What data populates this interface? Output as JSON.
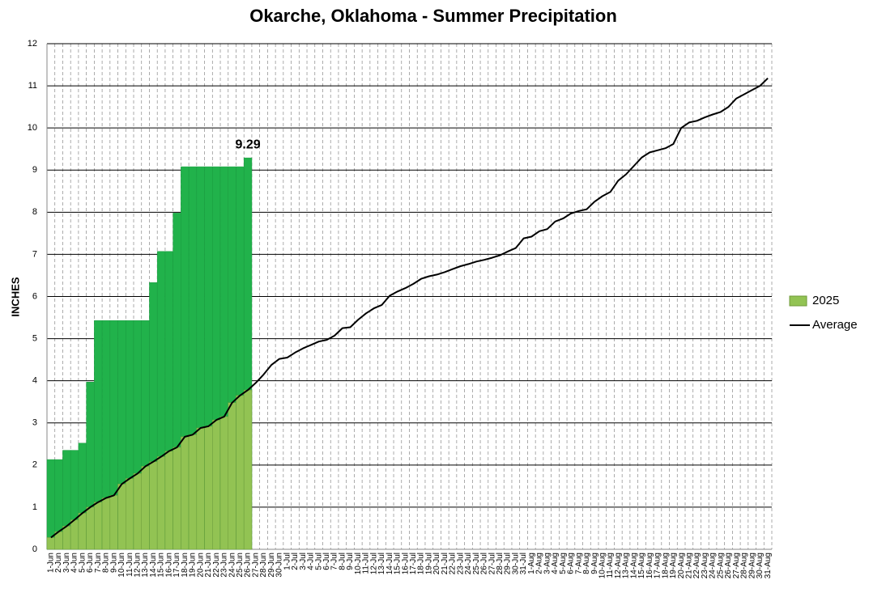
{
  "chart_data": {
    "type": "bar-line",
    "title": "Okarche, Oklahoma - Summer Precipitation",
    "y_label": "INCHES",
    "categories": [
      "1-Jun",
      "2-Jun",
      "3-Jun",
      "4-Jun",
      "5-Jun",
      "6-Jun",
      "7-Jun",
      "8-Jun",
      "9-Jun",
      "10-Jun",
      "11-Jun",
      "12-Jun",
      "13-Jun",
      "14-Jun",
      "15-Jun",
      "16-Jun",
      "17-Jun",
      "18-Jun",
      "19-Jun",
      "20-Jun",
      "21-Jun",
      "22-Jun",
      "23-Jun",
      "24-Jun",
      "25-Jun",
      "26-Jun",
      "27-Jun",
      "28-Jun",
      "29-Jun",
      "30-Jun",
      "1-Jul",
      "2-Jul",
      "3-Jul",
      "4-Jul",
      "5-Jul",
      "6-Jul",
      "7-Jul",
      "8-Jul",
      "9-Jul",
      "10-Jul",
      "11-Jul",
      "12-Jul",
      "13-Jul",
      "14-Jul",
      "15-Jul",
      "16-Jul",
      "17-Jul",
      "18-Jul",
      "19-Jul",
      "20-Jul",
      "21-Jul",
      "22-Jul",
      "23-Jul",
      "24-Jul",
      "25-Jul",
      "26-Jul",
      "27-Jul",
      "28-Jul",
      "29-Jul",
      "30-Jul",
      "31-Jul",
      "1-Aug",
      "2-Aug",
      "3-Aug",
      "4-Aug",
      "5-Aug",
      "6-Aug",
      "7-Aug",
      "8-Aug",
      "9-Aug",
      "10-Aug",
      "11-Aug",
      "12-Aug",
      "13-Aug",
      "14-Aug",
      "15-Aug",
      "16-Aug",
      "17-Aug",
      "18-Aug",
      "19-Aug",
      "20-Aug",
      "21-Aug",
      "22-Aug",
      "23-Aug",
      "24-Aug",
      "25-Aug",
      "26-Aug",
      "27-Aug",
      "28-Aug",
      "29-Aug",
      "30-Aug",
      "31-Aug"
    ],
    "series": [
      {
        "name": "2025",
        "kind": "bar",
        "color": "#92c353",
        "color_above_average": "#21b24b",
        "values": [
          2.13,
          2.13,
          2.35,
          2.35,
          2.52,
          3.97,
          5.43,
          5.43,
          5.43,
          5.43,
          5.43,
          5.43,
          5.43,
          6.33,
          7.07,
          7.07,
          7.98,
          9.08,
          9.08,
          9.08,
          9.08,
          9.08,
          9.08,
          9.08,
          9.08,
          9.29,
          null,
          null,
          null,
          null,
          null,
          null,
          null,
          null,
          null,
          null,
          null,
          null,
          null,
          null,
          null,
          null,
          null,
          null,
          null,
          null,
          null,
          null,
          null,
          null,
          null,
          null,
          null,
          null,
          null,
          null,
          null,
          null,
          null,
          null,
          null,
          null,
          null,
          null,
          null,
          null,
          null,
          null,
          null,
          null,
          null,
          null,
          null,
          null,
          null,
          null,
          null,
          null,
          null,
          null,
          null,
          null,
          null,
          null,
          null,
          null,
          null,
          null,
          null,
          null,
          null,
          null
        ],
        "value_labels": [
          null,
          null,
          null,
          null,
          null,
          null,
          null,
          null,
          null,
          null,
          null,
          null,
          null,
          null,
          null,
          null,
          null,
          null,
          null,
          null,
          null,
          null,
          null,
          null,
          null,
          "9.29",
          null,
          null,
          null,
          null,
          null,
          null,
          null,
          null,
          null,
          null,
          null,
          null,
          null,
          null,
          null,
          null,
          null,
          null,
          null,
          null,
          null,
          null,
          null,
          null,
          null,
          null,
          null,
          null,
          null,
          null,
          null,
          null,
          null,
          null,
          null,
          null,
          null,
          null,
          null,
          null,
          null,
          null,
          null,
          null,
          null,
          null,
          null,
          null,
          null,
          null,
          null,
          null,
          null,
          null,
          null,
          null,
          null,
          null,
          null,
          null,
          null,
          null,
          null,
          null,
          null,
          null
        ]
      },
      {
        "name": "Average",
        "kind": "line",
        "color": "#000000",
        "values": [
          0.28,
          0.42,
          0.55,
          0.7,
          0.86,
          1.0,
          1.12,
          1.22,
          1.28,
          1.55,
          1.68,
          1.8,
          1.97,
          2.08,
          2.2,
          2.33,
          2.42,
          2.67,
          2.72,
          2.88,
          2.92,
          3.07,
          3.15,
          3.48,
          3.65,
          3.78,
          3.95,
          4.15,
          4.38,
          4.52,
          4.55,
          4.67,
          4.77,
          4.85,
          4.93,
          4.97,
          5.07,
          5.25,
          5.27,
          5.45,
          5.6,
          5.72,
          5.8,
          6.02,
          6.12,
          6.2,
          6.3,
          6.42,
          6.48,
          6.52,
          6.58,
          6.65,
          6.72,
          6.77,
          6.83,
          6.87,
          6.92,
          6.98,
          7.07,
          7.15,
          7.38,
          7.42,
          7.55,
          7.6,
          7.78,
          7.85,
          7.97,
          8.03,
          8.07,
          8.25,
          8.38,
          8.48,
          8.75,
          8.9,
          9.1,
          9.3,
          9.42,
          9.47,
          9.52,
          9.62,
          10.0,
          10.13,
          10.17,
          10.25,
          10.32,
          10.38,
          10.5,
          10.7,
          10.8,
          10.9,
          11.0,
          11.18
        ]
      }
    ],
    "ylim": [
      0,
      12
    ],
    "yticks": [
      0,
      1,
      2,
      3,
      4,
      5,
      6,
      7,
      8,
      9,
      10,
      11,
      12
    ],
    "grid": true
  }
}
